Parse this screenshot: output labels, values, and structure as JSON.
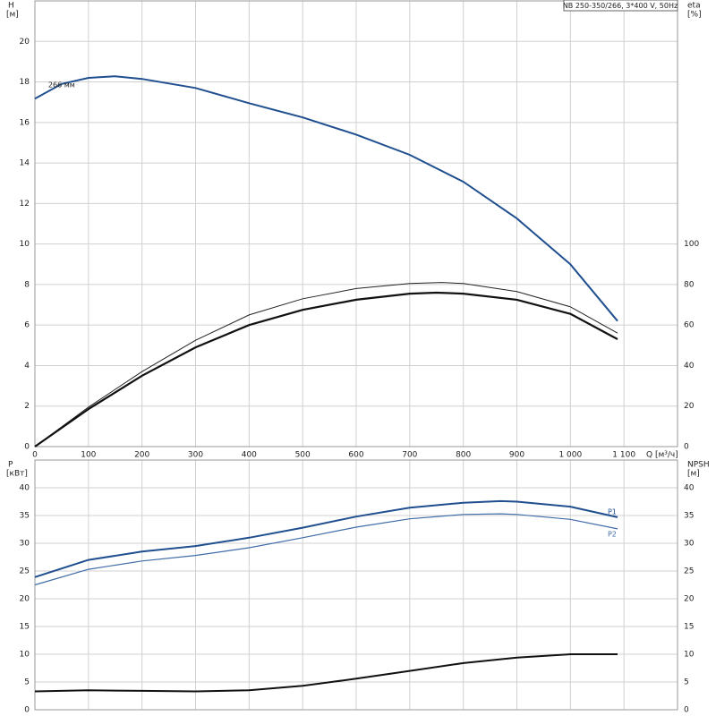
{
  "chart_data": [
    {
      "type": "line",
      "title": "NB 250-350/266, 3*400 V, 50Hz",
      "xlabel": "Q [м³/ч]",
      "ylabel": "H",
      "yunit": "[м]",
      "y2label": "eta",
      "y2unit": "[%]",
      "xlim": [
        0,
        1200
      ],
      "xticks": [
        0,
        100,
        200,
        300,
        400,
        500,
        600,
        700,
        800,
        900,
        {
          "value": 1000,
          "label": "1 000"
        },
        {
          "value": 1100,
          "label": "1 100"
        }
      ],
      "ylim": [
        0,
        22
      ],
      "yticks": [
        0,
        2,
        4,
        6,
        8,
        10,
        12,
        14,
        16,
        18,
        20
      ],
      "y2lim": [
        0,
        220
      ],
      "y2ticks": [
        0,
        20,
        40,
        60,
        80,
        100
      ],
      "grid": true,
      "series": [
        {
          "name": "266 мм",
          "color": "#1f4f8f",
          "line_width": 2,
          "x": [
            0,
            50,
            100,
            150,
            200,
            300,
            400,
            500,
            600,
            700,
            800,
            900,
            1000,
            1088
          ],
          "values": [
            17.17,
            17.9,
            18.2,
            18.28,
            18.15,
            17.7,
            16.95,
            16.25,
            15.4,
            14.4,
            13.07,
            11.26,
            9.0,
            6.2
          ]
        },
        {
          "color": "#222222",
          "line_width": 1,
          "axis": "y2",
          "x": [
            0,
            100,
            200,
            300,
            400,
            500,
            600,
            700,
            760,
            800,
            900,
            1000,
            1088
          ],
          "values": [
            0,
            19.5,
            37,
            52.5,
            65,
            73,
            78,
            80.5,
            81,
            80.5,
            76.5,
            69,
            56
          ]
        },
        {
          "color": "#111111",
          "line_width": 2.2,
          "axis": "y2",
          "x": [
            0,
            100,
            200,
            300,
            400,
            500,
            600,
            700,
            750,
            800,
            900,
            1000,
            1088
          ],
          "values": [
            0,
            18.5,
            35,
            49,
            60,
            67.5,
            72.5,
            75.5,
            76,
            75.5,
            72.5,
            65.5,
            53
          ]
        }
      ]
    },
    {
      "type": "line",
      "ylabel": "P",
      "yunit": "[кВт]",
      "y2label": "NPSH",
      "y2unit": "[м]",
      "xlim": [
        0,
        1200
      ],
      "ylim": [
        0,
        45
      ],
      "yticks": [
        0,
        5,
        10,
        15,
        20,
        25,
        30,
        35,
        40
      ],
      "y2lim": [
        0,
        45
      ],
      "y2ticks": [
        0,
        5,
        10,
        15,
        20,
        25,
        30,
        35,
        40
      ],
      "grid": true,
      "series": [
        {
          "name": "P1",
          "color": "#1f4f8f",
          "line_width": 2,
          "x": [
            0,
            100,
            200,
            300,
            400,
            500,
            600,
            700,
            800,
            870,
            900,
            1000,
            1088
          ],
          "values": [
            23.9,
            27,
            28.5,
            29.5,
            31,
            32.8,
            34.8,
            36.4,
            37.3,
            37.6,
            37.5,
            36.6,
            34.7
          ]
        },
        {
          "name": "P2",
          "color": "#3f6da8",
          "line_width": 1.2,
          "x": [
            0,
            100,
            200,
            300,
            400,
            500,
            600,
            700,
            800,
            870,
            900,
            1000,
            1088
          ],
          "values": [
            22.5,
            25.3,
            26.8,
            27.8,
            29.2,
            31,
            32.9,
            34.4,
            35.2,
            35.3,
            35.2,
            34.3,
            32.6
          ]
        },
        {
          "color": "#111111",
          "line_width": 2,
          "axis": "y2",
          "x": [
            0,
            100,
            200,
            300,
            400,
            500,
            600,
            700,
            800,
            900,
            1000,
            1088
          ],
          "values": [
            3.3,
            3.5,
            3.4,
            3.3,
            3.5,
            4.3,
            5.6,
            7.0,
            8.4,
            9.4,
            10.0,
            10.0
          ]
        }
      ]
    }
  ]
}
